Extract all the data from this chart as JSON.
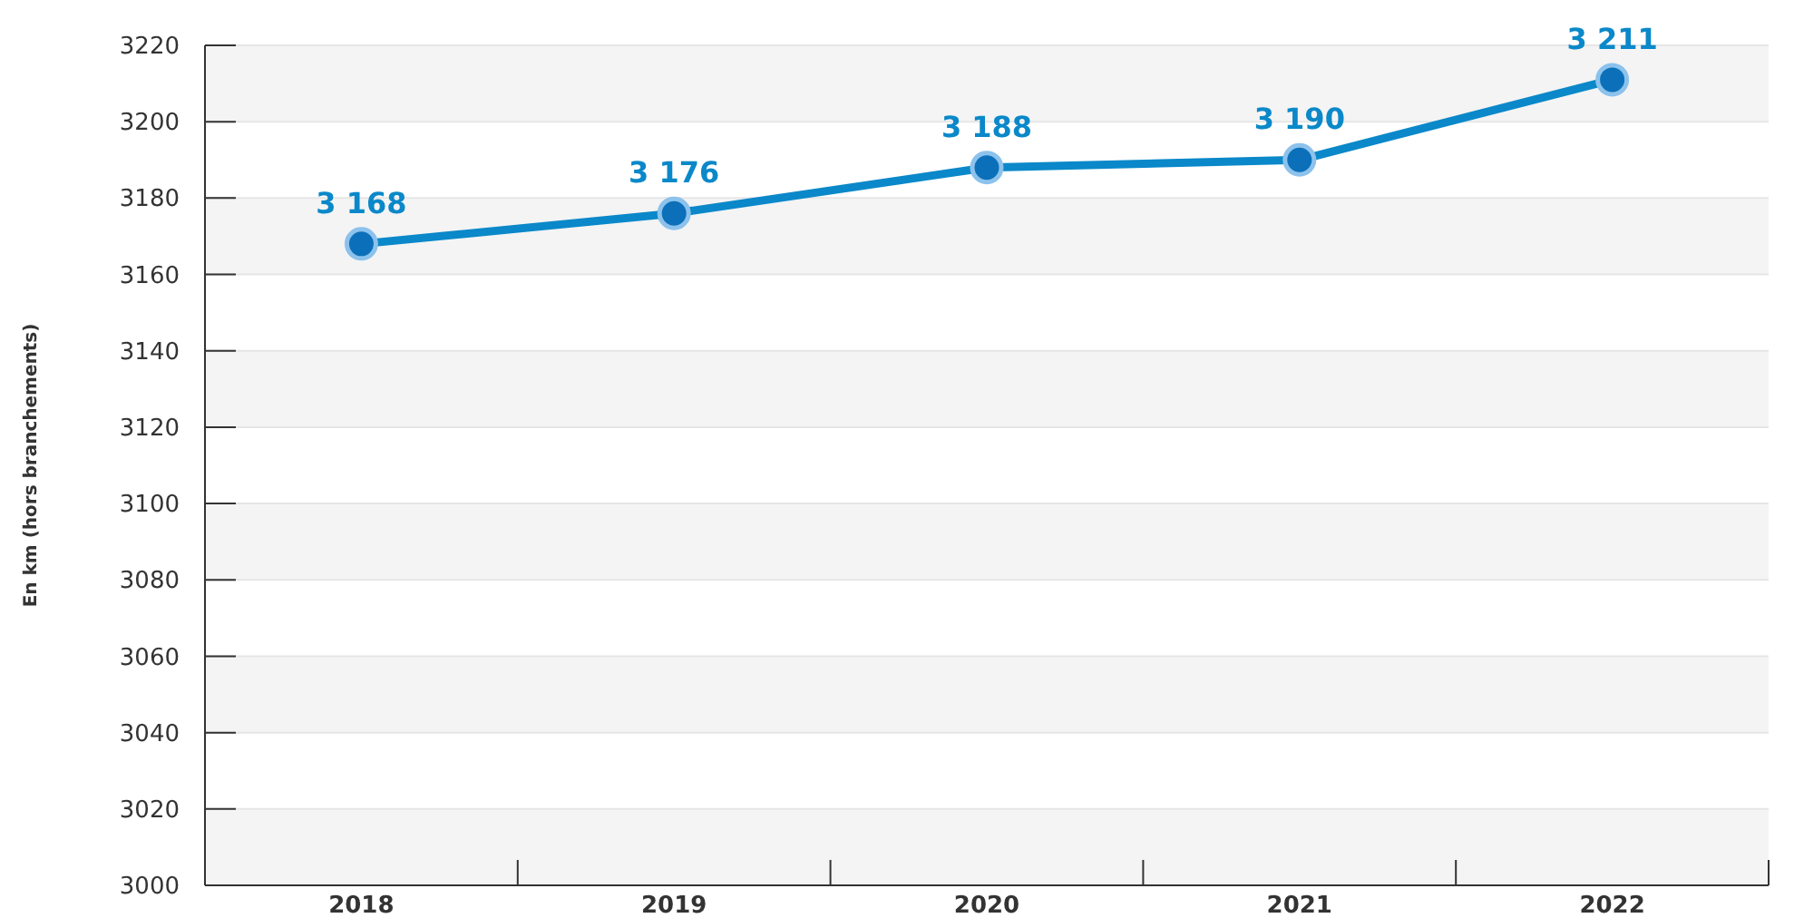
{
  "chart_data": {
    "type": "line",
    "ylabel": "En km (hors branchements)",
    "categories": [
      "2018",
      "2019",
      "2020",
      "2021",
      "2022"
    ],
    "series": [
      {
        "color": "#0a88c9",
        "values": [
          3168,
          3176,
          3188,
          3190,
          3211
        ],
        "value_labels": [
          "3 168",
          "3 176",
          "3 188",
          "3 190",
          "3 211"
        ]
      }
    ],
    "ylim": [
      3000,
      3220
    ],
    "yticks": [
      3000,
      3020,
      3040,
      3060,
      3080,
      3100,
      3120,
      3140,
      3160,
      3180,
      3200,
      3220
    ],
    "grid": "y",
    "marker": "circle",
    "line_style": "solid"
  }
}
